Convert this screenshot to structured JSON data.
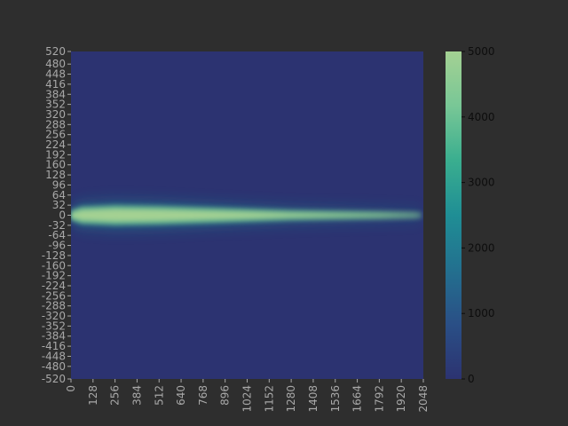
{
  "chart_data": {
    "type": "heatmap",
    "title": "",
    "xlabel": "",
    "ylabel": "",
    "xlim": [
      0,
      2048
    ],
    "ylim": [
      -520,
      520
    ],
    "x_ticks": [
      0,
      128,
      256,
      384,
      512,
      640,
      768,
      896,
      1024,
      1152,
      1280,
      1408,
      1536,
      1664,
      1792,
      1920,
      2048
    ],
    "y_ticks": [
      520,
      480,
      448,
      416,
      384,
      352,
      320,
      288,
      256,
      224,
      192,
      160,
      128,
      96,
      64,
      32,
      0,
      -32,
      -64,
      -96,
      -128,
      -160,
      -192,
      -224,
      -256,
      -288,
      -320,
      -352,
      -384,
      -416,
      -448,
      -480,
      -520
    ],
    "colorbar": {
      "min": 0,
      "max": 5000,
      "ticks": [
        0,
        1000,
        2000,
        3000,
        4000,
        5000
      ],
      "colormap": [
        "#2c3371",
        "#2a4f86",
        "#23708f",
        "#1f8e95",
        "#3aae8f",
        "#78c796",
        "#a4d193"
      ]
    },
    "background_value": 0,
    "band": {
      "description_values": "saturated intensity band centered near y=0",
      "center_y": 0,
      "half_width_profile": [
        {
          "x": 0,
          "half_width": 10
        },
        {
          "x": 64,
          "half_width": 20
        },
        {
          "x": 256,
          "half_width": 24
        },
        {
          "x": 512,
          "half_width": 22
        },
        {
          "x": 768,
          "half_width": 18
        },
        {
          "x": 1024,
          "half_width": 14
        },
        {
          "x": 1280,
          "half_width": 10
        },
        {
          "x": 1536,
          "half_width": 8
        },
        {
          "x": 1792,
          "half_width": 6
        },
        {
          "x": 2000,
          "half_width": 4
        },
        {
          "x": 2040,
          "half_width": 2
        }
      ],
      "peak_value": 5000
    }
  }
}
